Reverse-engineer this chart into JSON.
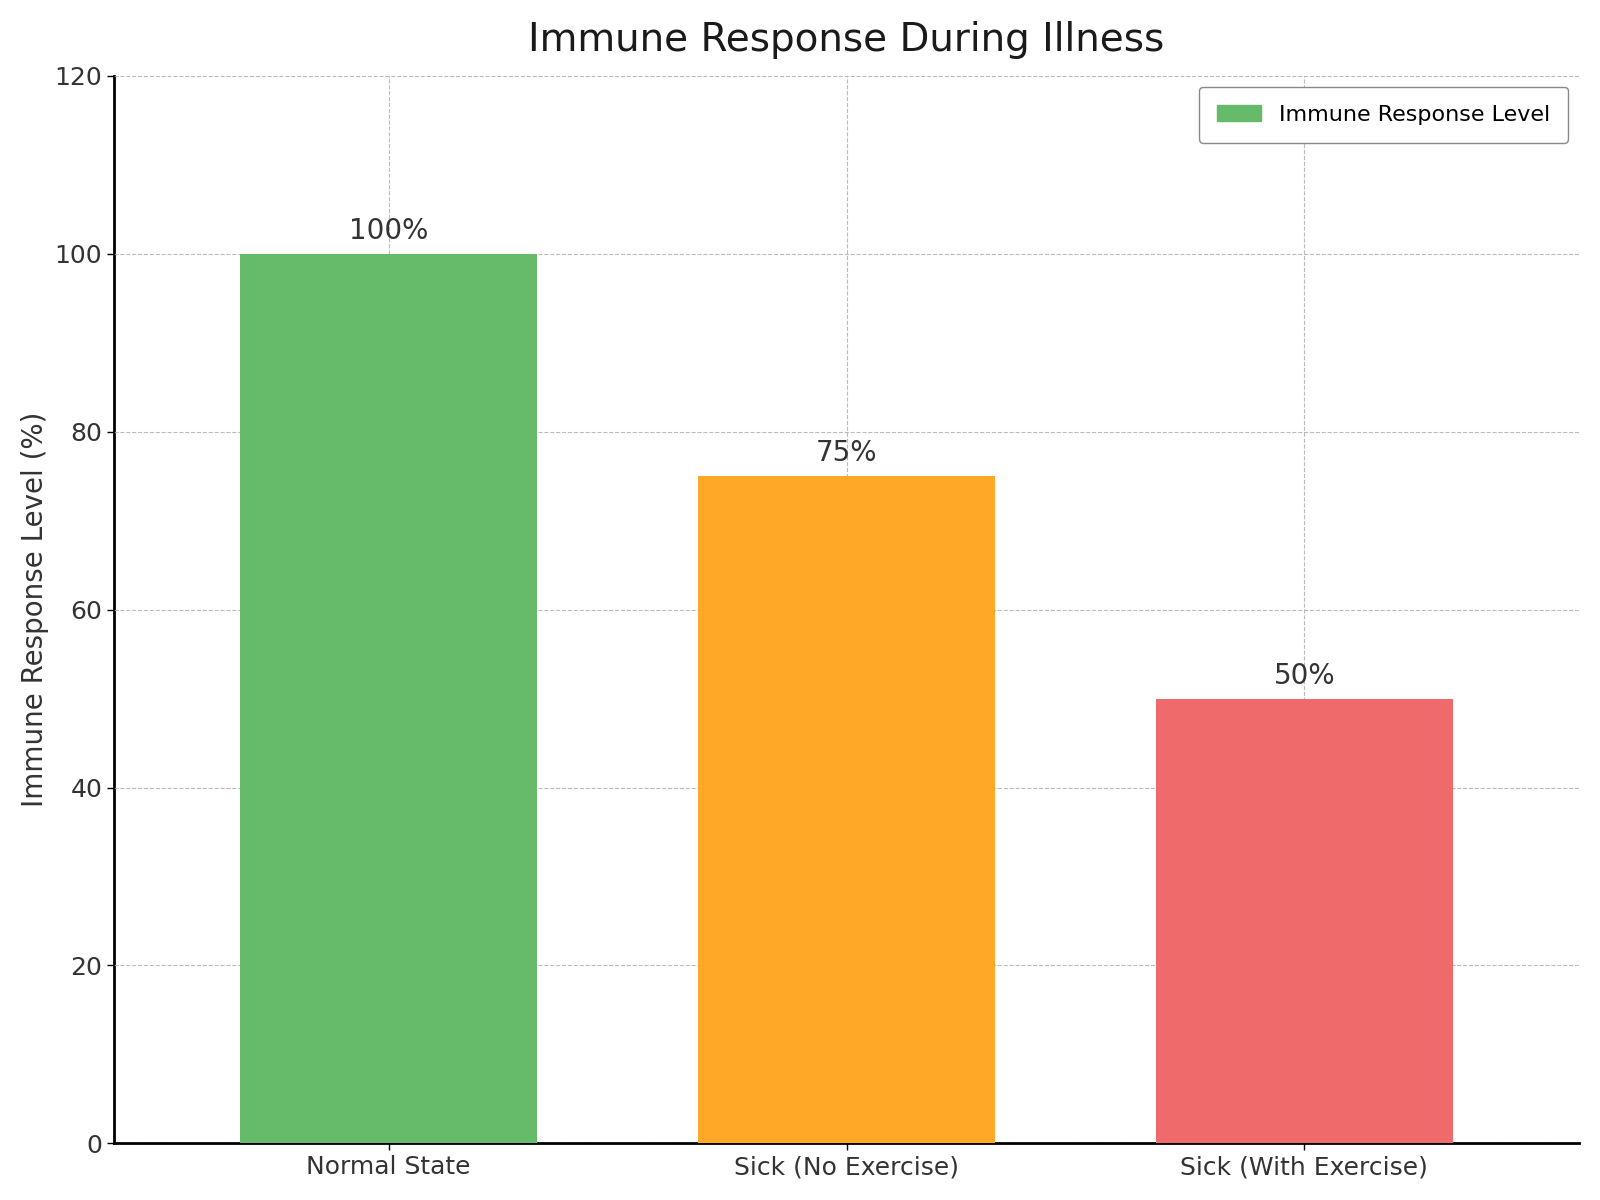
{
  "categories": [
    "Normal State",
    "Sick (No Exercise)",
    "Sick (With Exercise)"
  ],
  "values": [
    100,
    75,
    50
  ],
  "bar_colors": [
    "#66BB6A",
    "#FFA726",
    "#EF6B6B"
  ],
  "bar_labels": [
    "100%",
    "75%",
    "50%"
  ],
  "title": "Immune Response During Illness",
  "ylabel": "Immune Response Level (%)",
  "ylim": [
    0,
    120
  ],
  "yticks": [
    0,
    20,
    40,
    60,
    80,
    100,
    120
  ],
  "legend_label": "Immune Response Level",
  "legend_color": "#66BB6A",
  "title_fontsize": 28,
  "label_fontsize": 20,
  "tick_fontsize": 18,
  "bar_label_fontsize": 20,
  "legend_fontsize": 16,
  "background_color": "#ffffff",
  "grid_color": "#aaaaaa",
  "bar_width": 0.65
}
